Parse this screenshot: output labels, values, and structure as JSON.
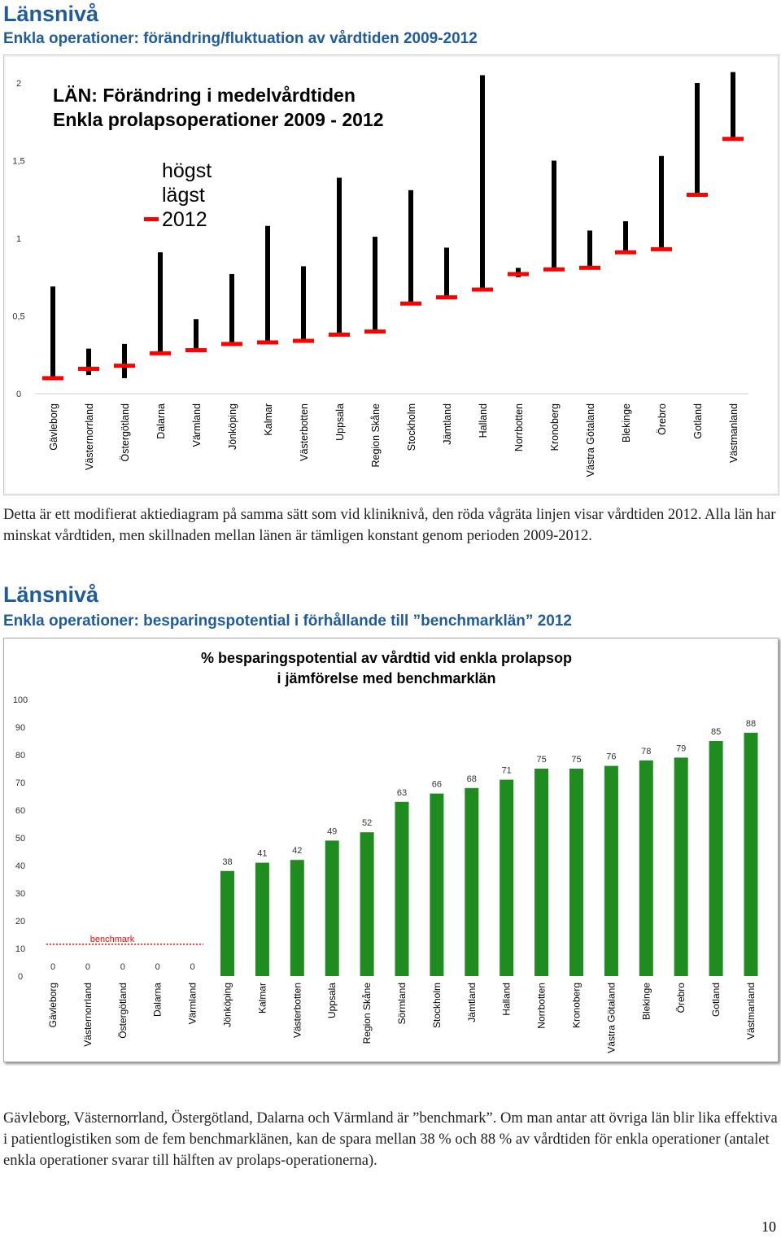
{
  "section1": {
    "heading": "Länsnivå",
    "subheading": "Enkla operationer: förändring/fluktuation av vårdtiden 2009-2012"
  },
  "paragraph1": "Detta är ett modifierat aktiediagram på samma sätt som vid kliniknivå, den röda vågräta linjen visar vårdtiden 2012. Alla län har minskat vårdtiden, men skillnaden mellan länen är tämligen konstant genom perioden 2009-2012.",
  "section2": {
    "heading": "Länsnivå",
    "subheading": "Enkla operationer: besparingspotential i förhållande till ”benchmarklän” 2012"
  },
  "paragraph2": "Gävleborg, Västernorrland, Östergötland, Dalarna och Värmland är ”benchmark”. Om man antar att övriga län blir lika effektiva i patientlogistiken som de fem benchmarklänen, kan de spara mellan 38 % och 88 % av vårdtiden för enkla operationer (antalet enkla operationer svarar till hälften av prolaps-operationerna).",
  "page_number": "10",
  "colors": {
    "heading": "#1f5c9e",
    "bar_black": "#000000",
    "marker_red": "#ff0000",
    "bar_green": "#1e8c1e"
  },
  "chart_data": [
    {
      "type": "stock",
      "title": "LÄN: Förändring i medelvårdtiden",
      "subtitle": "Enkla prolapsoperationer 2009 - 2012",
      "legend": [
        "högst",
        "lägst",
        "2012"
      ],
      "legend_placement": "top-left",
      "ylim": [
        0,
        2
      ],
      "yticks": [
        "0",
        "0,5",
        "1",
        "1,5",
        "2"
      ],
      "categories": [
        "Gävleborg",
        "Västernorrland",
        "Östergötland",
        "Dalarna",
        "Värmland",
        "Jönköping",
        "Kalmar",
        "Västerbotten",
        "Uppsala",
        "Region Skåne",
        "Stockholm",
        "Jämtland",
        "Halland",
        "Norrbotten",
        "Kronoberg",
        "Västra Götaland",
        "Blekinge",
        "Örebro",
        "Gotland",
        "Västmanland"
      ],
      "high": [
        0.69,
        0.29,
        0.32,
        0.91,
        0.48,
        0.77,
        1.08,
        0.82,
        1.39,
        1.01,
        1.31,
        0.94,
        2.05,
        0.81,
        1.5,
        1.05,
        1.11,
        1.53,
        2.0,
        2.07
      ],
      "low": [
        0.1,
        0.12,
        0.1,
        0.26,
        0.27,
        0.31,
        0.33,
        0.34,
        0.38,
        0.4,
        0.58,
        0.61,
        0.66,
        0.75,
        0.8,
        0.81,
        0.91,
        0.93,
        1.28,
        1.64
      ],
      "value_2012": [
        0.1,
        0.16,
        0.18,
        0.26,
        0.28,
        0.32,
        0.33,
        0.34,
        0.38,
        0.4,
        0.58,
        0.62,
        0.67,
        0.77,
        0.8,
        0.81,
        0.91,
        0.93,
        1.28,
        1.64
      ]
    },
    {
      "type": "bar",
      "title": "% besparingspotential av vårdtid vid enkla prolapsop",
      "subtitle": "i jämförelse med benchmarklän",
      "ylim": [
        0,
        100
      ],
      "yticks": [
        "0",
        "10",
        "20",
        "30",
        "40",
        "50",
        "60",
        "70",
        "80",
        "90",
        "100"
      ],
      "benchmark_label": "benchmark",
      "categories": [
        "Gävleborg",
        "Västernorrland",
        "Östergötland",
        "Dalarna",
        "Värmland",
        "Jönköping",
        "Kalmar",
        "Västerbotten",
        "Uppsala",
        "Region Skåne",
        "Sörmland",
        "Stockholm",
        "Jämtland",
        "Halland",
        "Norrbotten",
        "Kronoberg",
        "Västra Götaland",
        "Blekinge",
        "Örebro",
        "Gotland",
        "Västmanland"
      ],
      "values": [
        0,
        0,
        0,
        0,
        0,
        38,
        41,
        42,
        49,
        52,
        63,
        66,
        68,
        71,
        75,
        75,
        76,
        78,
        79,
        85,
        88
      ]
    }
  ]
}
